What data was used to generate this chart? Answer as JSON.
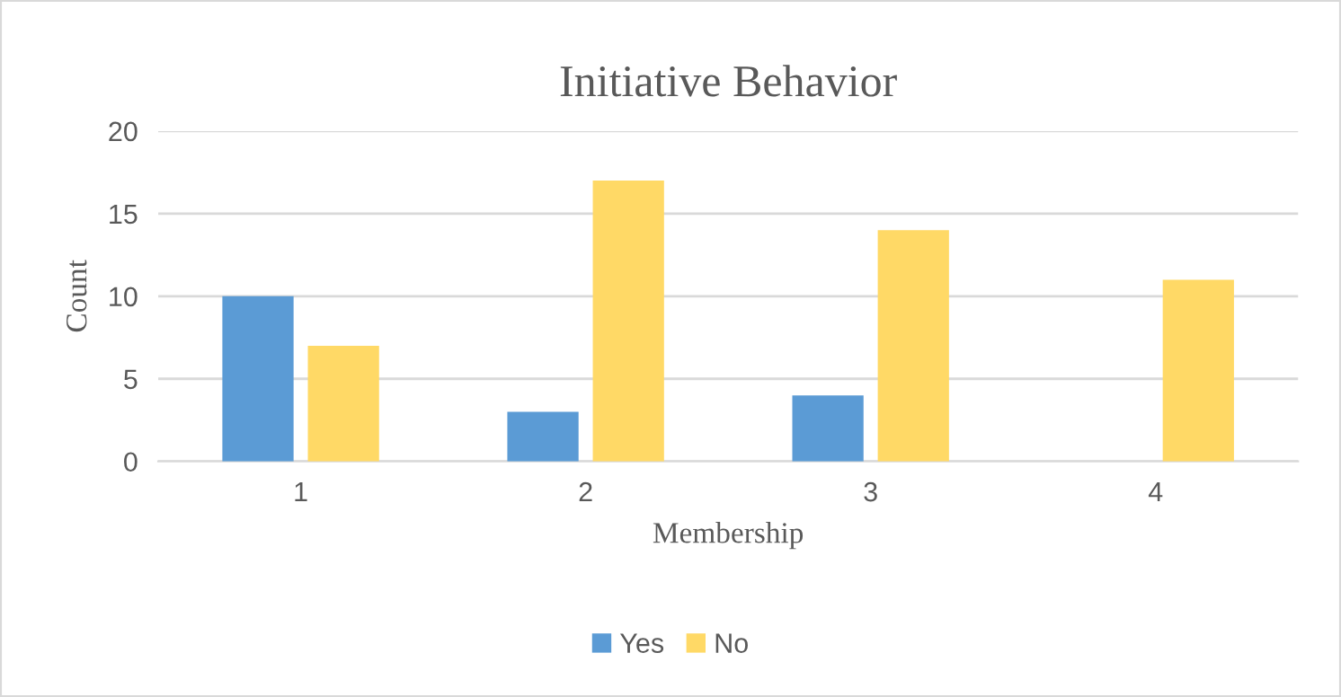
{
  "chart_data": {
    "type": "bar",
    "title": "Initiative Behavior",
    "xlabel": "Membership",
    "ylabel": "Count",
    "categories": [
      "1",
      "2",
      "3",
      "4"
    ],
    "series": [
      {
        "name": "Yes",
        "color": "#5b9bd5",
        "values": [
          10,
          3,
          4,
          0
        ]
      },
      {
        "name": "No",
        "color": "#ffd966",
        "values": [
          7,
          17,
          14,
          11
        ]
      }
    ],
    "ylim": [
      0,
      20
    ],
    "yticks": [
      0,
      5,
      10,
      15,
      20
    ],
    "grid": "y",
    "legend": "bottom"
  }
}
